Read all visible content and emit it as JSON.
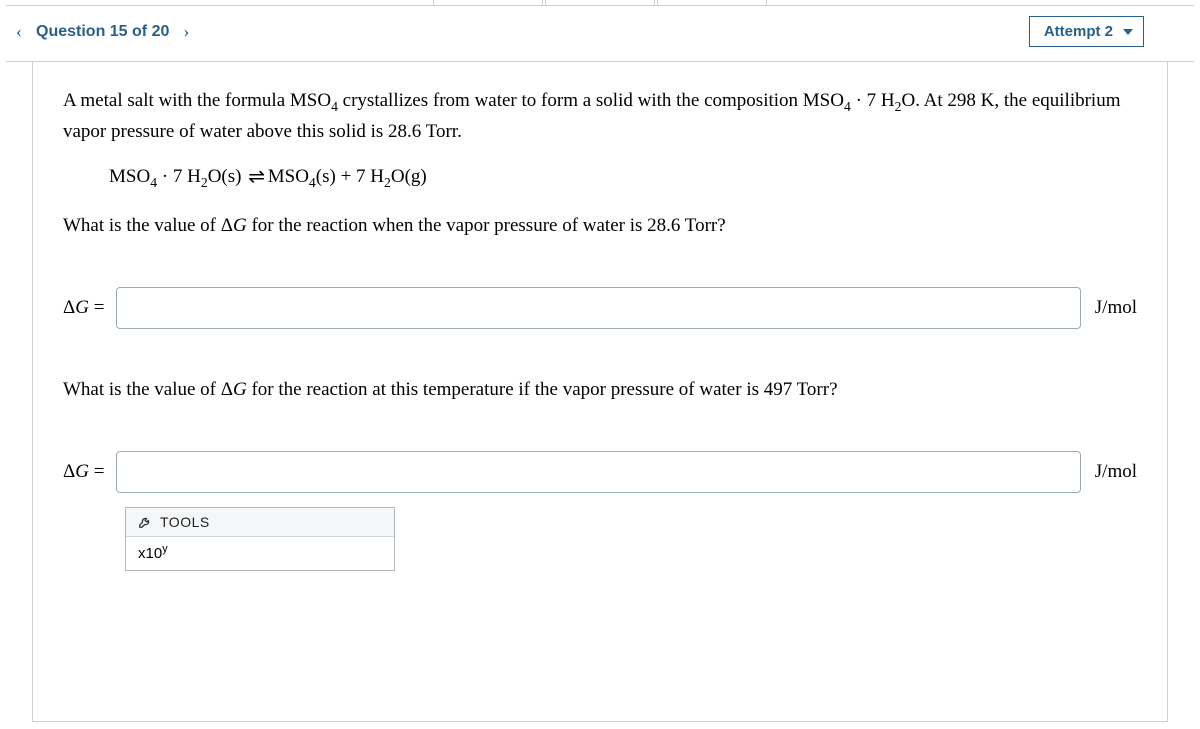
{
  "header": {
    "question_label": "Question 15 of 20",
    "attempt_label": "Attempt 2"
  },
  "problem": {
    "intro_html": "A metal salt with the formula MSO<sub>4</sub> crystallizes from water to form a solid with the composition MSO<sub>4</sub> · 7 H<sub>2</sub>O. At 298 K, the equilibrium vapor pressure of water above this solid is 28.6 Torr.",
    "equation_html": "MSO<sub>4</sub> · 7 H<sub>2</sub>O(s) <span class='rxn-arrow'>⇌</span> MSO<sub>4</sub>(s) + 7 H<sub>2</sub>O(g)",
    "q1_html": "What is the value of <span class='delta'>Δ</span><span class='italic'>G</span> for the reaction when the vapor pressure of water is 28.6 Torr?",
    "q2_html": "What is the value of <span class='delta'>Δ</span><span class='italic'>G</span> for the reaction at this temperature if the vapor pressure of water is 497 Torr?"
  },
  "answers": {
    "label_html": "<span class='delta'>Δ</span><span class='italic'>G</span> =",
    "unit": "J/mol",
    "value1": "",
    "value2": ""
  },
  "tools": {
    "title": "TOOLS",
    "button_html": "x10<sup>y</sup>"
  },
  "colors": {
    "brand": "#296089",
    "border": "#d0d0d0",
    "input_border": "#9daab4",
    "tools_bg": "#f4f6f7"
  }
}
